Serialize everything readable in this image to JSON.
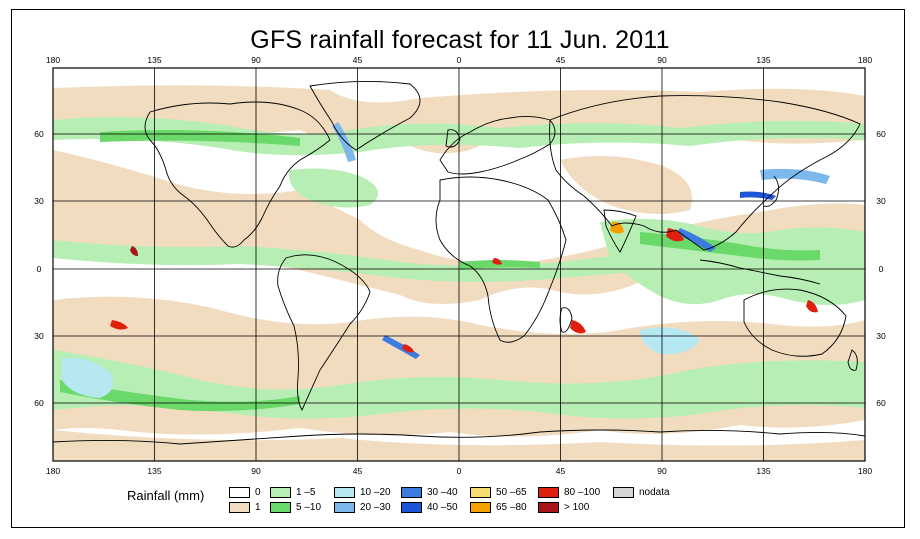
{
  "title": "GFS rainfall forecast for 11 Jun. 2011",
  "map": {
    "lon_top": [
      "180",
      "135",
      "90",
      "45",
      "0",
      "45",
      "90",
      "135",
      "180"
    ],
    "lon_bottom": [
      "180",
      "135",
      "90",
      "45",
      "0",
      "45",
      "90",
      "135",
      "180"
    ],
    "lat_left": [
      "60",
      "30",
      "0",
      "30",
      "60"
    ],
    "lat_right": [
      "60",
      "30",
      "0",
      "30",
      "60"
    ]
  },
  "legend": {
    "title": "Rainfall (mm)",
    "items": [
      {
        "label": "0",
        "color": "#ffffff"
      },
      {
        "label": "1",
        "color": "#f2dcc0"
      },
      {
        "label": "1 –5",
        "color": "#b6eeb4"
      },
      {
        "label": "5 –10",
        "color": "#6bd86a"
      },
      {
        "label": "10 –20",
        "color": "#b6e8f2"
      },
      {
        "label": "20 –30",
        "color": "#7cb8ec"
      },
      {
        "label": "30 –40",
        "color": "#3c7ce0"
      },
      {
        "label": "40 –50",
        "color": "#1d54d8"
      },
      {
        "label": "50 –65",
        "color": "#f7dc72"
      },
      {
        "label": "65 –80",
        "color": "#f5a000"
      },
      {
        "label": "80 –100",
        "color": "#e0200e"
      },
      {
        "label": "> 100",
        "color": "#a8161c"
      },
      {
        "label": "nodata",
        "color": "#d6d6d6"
      }
    ]
  }
}
